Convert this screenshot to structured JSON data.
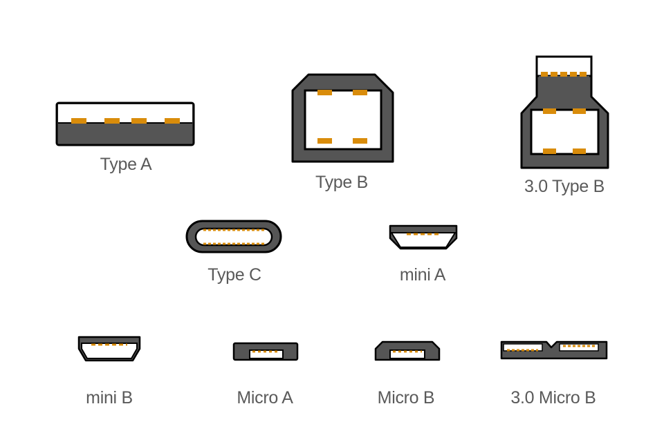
{
  "colors": {
    "body": "#555555",
    "outline": "#000000",
    "pin": "#d98c0b",
    "cavity": "#ffffff"
  },
  "connectors": [
    {
      "id": "type-a",
      "label": "Type A",
      "icon": "usb-type-a-icon"
    },
    {
      "id": "type-b",
      "label": "Type B",
      "icon": "usb-type-b-icon"
    },
    {
      "id": "type-b-3",
      "label": "3.0 Type B",
      "icon": "usb-3-type-b-icon"
    },
    {
      "id": "type-c",
      "label": "Type C",
      "icon": "usb-type-c-icon"
    },
    {
      "id": "mini-a",
      "label": "mini A",
      "icon": "usb-mini-a-icon"
    },
    {
      "id": "mini-b",
      "label": "mini B",
      "icon": "usb-mini-b-icon"
    },
    {
      "id": "micro-a",
      "label": "Micro A",
      "icon": "usb-micro-a-icon"
    },
    {
      "id": "micro-b",
      "label": "Micro B",
      "icon": "usb-micro-b-icon"
    },
    {
      "id": "micro-b-3",
      "label": "3.0 Micro B",
      "icon": "usb-3-micro-b-icon"
    }
  ]
}
